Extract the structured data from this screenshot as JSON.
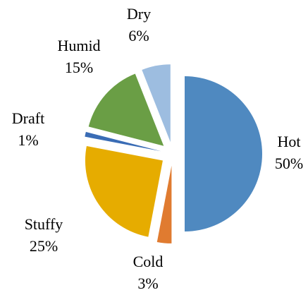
{
  "chart_data": {
    "type": "pie",
    "categories": [
      "Hot",
      "Cold",
      "Stuffy",
      "Draft",
      "Humid",
      "Dry"
    ],
    "values": [
      50,
      3,
      25,
      1,
      15,
      6
    ],
    "value_labels": [
      "50%",
      "3%",
      "25%",
      "1%",
      "15%",
      "6%"
    ],
    "colors": [
      "#4f89c0",
      "#e07b30",
      "#e6ac00",
      "#3a6cb5",
      "#6a9e45",
      "#9dbde0"
    ]
  }
}
